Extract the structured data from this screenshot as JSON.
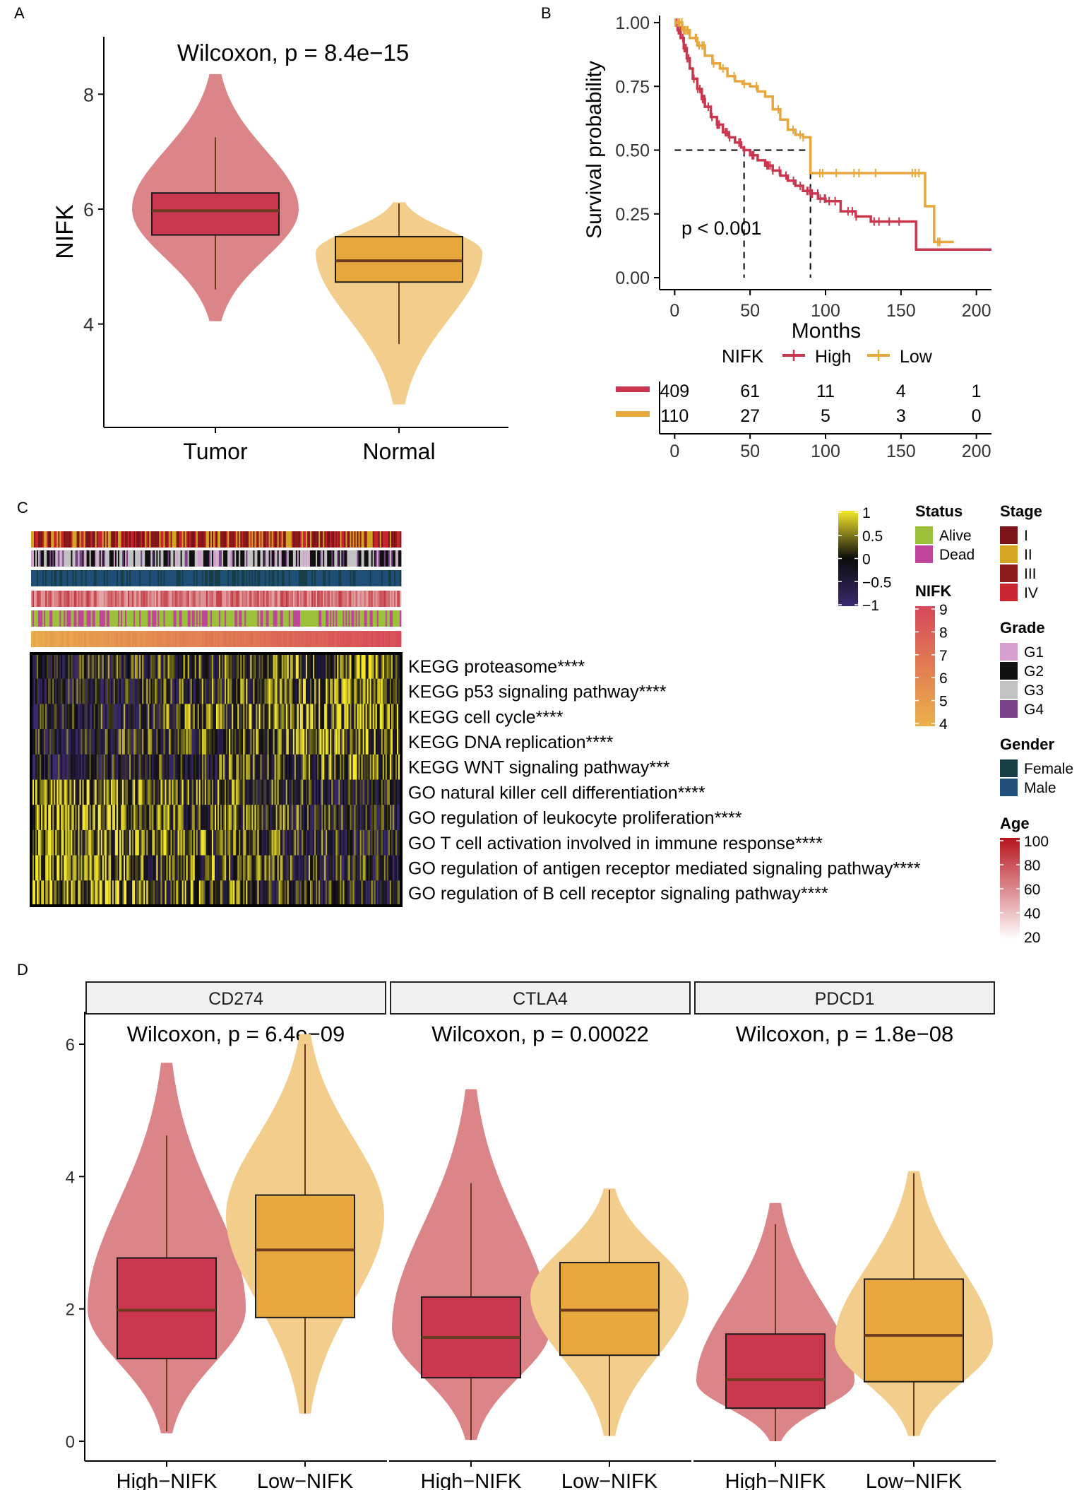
{
  "colors": {
    "high": "#c9364e",
    "high_violin": "#dc8588",
    "low": "#e8a73c",
    "low_violin": "#f3cd8c",
    "box_line": "#1a1a1a",
    "median": "#6b3a1f",
    "strip_bg": "#f0f0f0",
    "alive": "#9bc13a",
    "dead": "#c0449a",
    "stage_I": "#7a1418",
    "stage_II": "#d4a520",
    "stage_III": "#8c1a1c",
    "stage_IV": "#c8252e",
    "grade_G1": "#d69fd0",
    "grade_G2": "#111111",
    "grade_G3": "#c2c2c2",
    "grade_G4": "#7a4389",
    "gender_female": "#173e45",
    "gender_male": "#1f4f78",
    "nifk_high": "#d6485b",
    "nifk_low": "#ebb14a",
    "age_high": "#b8141d",
    "age_low": "#ffffff",
    "heat_high": "#f5e82b",
    "heat_mid": "#0c0c0c",
    "heat_low": "#3a2a6e"
  },
  "panel_letters": {
    "a": "A",
    "b": "B",
    "c": "C",
    "d": "D"
  },
  "chart_data": [
    {
      "id": "A",
      "type": "violin-box",
      "title": "Wilcoxon, p = 8.4e−15",
      "xlabel": "",
      "ylabel": "NIFK",
      "categories": [
        "Tumor",
        "Normal"
      ],
      "ylim": [
        2.2,
        9.0
      ],
      "yticks": [
        4,
        6,
        8
      ],
      "groups": [
        {
          "name": "Tumor",
          "min": 4.6,
          "q1": 5.55,
          "median": 5.97,
          "q3": 6.28,
          "max": 7.25,
          "violin_min": 4.05,
          "violin_max": 8.35,
          "violin_mode": 6.0,
          "color": "high"
        },
        {
          "name": "Normal",
          "min": 3.65,
          "q1": 4.73,
          "median": 5.1,
          "q3": 5.52,
          "max": 6.1,
          "violin_min": 2.6,
          "violin_max": 6.12,
          "violin_mode": 5.25,
          "color": "low"
        }
      ]
    },
    {
      "id": "B",
      "type": "line",
      "subtype": "kaplan-meier",
      "xlabel": "Months",
      "ylabel": "Survival probability",
      "xlim": [
        -10,
        210
      ],
      "ylim": [
        0,
        1.02
      ],
      "xticks": [
        0,
        50,
        100,
        150,
        200
      ],
      "yticks": [
        "0.00",
        "0.25",
        "0.50",
        "0.75",
        "1.00"
      ],
      "annotation": "p < 0.001",
      "legend_title": "NIFK",
      "median_survival": {
        "High": 46,
        "Low": 90
      },
      "series": [
        {
          "name": "High",
          "color": "high",
          "x": [
            0,
            2,
            4,
            6,
            8,
            10,
            12,
            15,
            18,
            20,
            24,
            28,
            32,
            36,
            40,
            44,
            46,
            50,
            55,
            60,
            65,
            70,
            75,
            80,
            85,
            90,
            95,
            100,
            110,
            120,
            130,
            140,
            150,
            156,
            160,
            180,
            210
          ],
          "y": [
            1.0,
            0.97,
            0.94,
            0.9,
            0.86,
            0.82,
            0.78,
            0.74,
            0.7,
            0.67,
            0.63,
            0.6,
            0.57,
            0.55,
            0.53,
            0.51,
            0.5,
            0.48,
            0.46,
            0.44,
            0.42,
            0.4,
            0.38,
            0.36,
            0.34,
            0.33,
            0.31,
            0.3,
            0.26,
            0.24,
            0.22,
            0.22,
            0.22,
            0.22,
            0.11,
            0.11,
            0.11
          ]
        },
        {
          "name": "Low",
          "color": "low",
          "x": [
            0,
            5,
            10,
            15,
            20,
            25,
            30,
            35,
            40,
            45,
            50,
            55,
            60,
            65,
            70,
            75,
            80,
            85,
            90,
            100,
            120,
            140,
            160,
            166,
            172,
            185
          ],
          "y": [
            1.0,
            0.97,
            0.94,
            0.91,
            0.87,
            0.84,
            0.82,
            0.79,
            0.77,
            0.76,
            0.75,
            0.73,
            0.71,
            0.66,
            0.62,
            0.58,
            0.56,
            0.55,
            0.41,
            0.41,
            0.41,
            0.41,
            0.41,
            0.28,
            0.14,
            0.14
          ]
        }
      ],
      "risk_table": {
        "times": [
          0,
          50,
          100,
          150,
          200
        ],
        "xticks": [
          0,
          50,
          100,
          150,
          200
        ],
        "rows": [
          {
            "name": "High",
            "color": "high",
            "values": [
              "409",
              "61",
              "11",
              "4",
              "1"
            ]
          },
          {
            "name": "Low",
            "color": "low",
            "values": [
              "110",
              "27",
              "5",
              "3",
              "0"
            ]
          }
        ]
      }
    },
    {
      "id": "C",
      "type": "heatmap",
      "value_range": [
        -1,
        1
      ],
      "rows": [
        "KEGG proteasome****",
        "KEGG p53 signaling pathway****",
        "KEGG cell cycle****",
        "KEGG DNA replication****",
        "KEGG WNT signaling pathway***",
        "GO natural killer cell differentiation****",
        "GO regulation of leukocyte proliferation****",
        "GO T cell activation involved in immune response****",
        "GO regulation of antigen receptor mediated signaling pathway****",
        "GO regulation of B cell receptor signaling pathway****"
      ],
      "annotation_tracks": [
        "Stage",
        "Grade",
        "Gender",
        "Age",
        "Status",
        "NIFK"
      ],
      "legends": {
        "scale_ticks": [
          "1",
          "0.5",
          "0",
          "−0.5",
          "−1"
        ],
        "status": {
          "title": "Status",
          "items": [
            "Alive",
            "Dead"
          ]
        },
        "stage": {
          "title": "Stage",
          "items": [
            "I",
            "II",
            "III",
            "IV"
          ]
        },
        "grade": {
          "title": "Grade",
          "items": [
            "G1",
            "G2",
            "G3",
            "G4"
          ]
        },
        "gender": {
          "title": "Gender",
          "items": [
            "Female",
            "Male"
          ]
        },
        "nifk": {
          "title": "NIFK",
          "ticks": [
            "9",
            "8",
            "7",
            "6",
            "5",
            "4"
          ]
        },
        "age": {
          "title": "Age",
          "ticks": [
            "100",
            "80",
            "60",
            "40",
            "20"
          ]
        }
      }
    },
    {
      "id": "D",
      "type": "violin-box",
      "ylim": [
        -0.2,
        6.5
      ],
      "yticks": [
        0,
        2,
        4,
        6
      ],
      "facets": [
        {
          "strip": "CD274",
          "title": "Wilcoxon, p = 6.4e−09",
          "categories": [
            "High−NIFK",
            "Low−NIFK"
          ],
          "groups": [
            {
              "name": "High−NIFK",
              "min": 0.15,
              "q1": 1.25,
              "median": 1.98,
              "q3": 2.77,
              "max": 4.62,
              "violin_min": 0.12,
              "violin_max": 5.72,
              "violin_mode": 2.0,
              "color": "high"
            },
            {
              "name": "Low−NIFK",
              "min": 0.42,
              "q1": 1.87,
              "median": 2.89,
              "q3": 3.72,
              "max": 6.0,
              "violin_min": 0.42,
              "violin_max": 6.15,
              "violin_mode": 3.4,
              "color": "low"
            }
          ]
        },
        {
          "strip": "CTLA4",
          "title": "Wilcoxon, p = 0.00022",
          "categories": [
            "High−NIFK",
            "Low−NIFK"
          ],
          "groups": [
            {
              "name": "High−NIFK",
              "min": 0.02,
              "q1": 0.96,
              "median": 1.57,
              "q3": 2.18,
              "max": 3.9,
              "violin_min": 0.02,
              "violin_max": 5.32,
              "violin_mode": 1.7,
              "color": "high"
            },
            {
              "name": "Low−NIFK",
              "min": 0.08,
              "q1": 1.3,
              "median": 1.98,
              "q3": 2.7,
              "max": 3.8,
              "violin_min": 0.08,
              "violin_max": 3.82,
              "violin_mode": 2.2,
              "color": "low"
            }
          ]
        },
        {
          "strip": "PDCD1",
          "title": "Wilcoxon, p = 1.8e−08",
          "categories": [
            "High−NIFK",
            "Low−NIFK"
          ],
          "groups": [
            {
              "name": "High−NIFK",
              "min": 0.0,
              "q1": 0.5,
              "median": 0.93,
              "q3": 1.62,
              "max": 3.28,
              "violin_min": 0.0,
              "violin_max": 3.6,
              "violin_mode": 0.9,
              "color": "high"
            },
            {
              "name": "Low−NIFK",
              "min": 0.08,
              "q1": 0.9,
              "median": 1.6,
              "q3": 2.45,
              "max": 4.05,
              "violin_min": 0.08,
              "violin_max": 4.08,
              "violin_mode": 1.5,
              "color": "low"
            }
          ]
        }
      ]
    }
  ]
}
